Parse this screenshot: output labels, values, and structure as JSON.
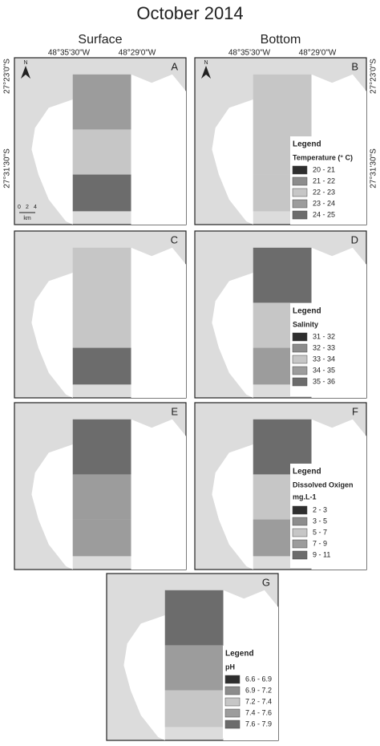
{
  "title": "October 2014",
  "columns": [
    "Surface",
    "Bottom"
  ],
  "longitudes": [
    "48°35'30\"W",
    "48°29'0\"W"
  ],
  "latitudes": [
    "27°23'0\"S",
    "27°31'30\"S"
  ],
  "north": "N",
  "scale": {
    "ticks": [
      "0",
      "2",
      "4"
    ],
    "unit": "km"
  },
  "panels": [
    {
      "label": "A"
    },
    {
      "label": "B"
    },
    {
      "label": "C"
    },
    {
      "label": "D"
    },
    {
      "label": "E"
    },
    {
      "label": "F"
    },
    {
      "label": "G"
    }
  ],
  "legends": [
    {
      "heading": "Legend",
      "title": "Temperature (° C)",
      "items": [
        {
          "label": "20 - 21",
          "color": "#2e2e2e"
        },
        {
          "label": "21 - 22",
          "color": "#8c8c8c"
        },
        {
          "label": "22 - 23",
          "color": "#c6c6c6"
        },
        {
          "label": "23 - 24",
          "color": "#9c9c9c"
        },
        {
          "label": "24 - 25",
          "color": "#6c6c6c"
        }
      ]
    },
    {
      "heading": "Legend",
      "title": "Salinity",
      "items": [
        {
          "label": "31 - 32",
          "color": "#2e2e2e"
        },
        {
          "label": "32 - 33",
          "color": "#8c8c8c"
        },
        {
          "label": "33 - 34",
          "color": "#c6c6c6"
        },
        {
          "label": "34 - 35",
          "color": "#9c9c9c"
        },
        {
          "label": "35 - 36",
          "color": "#6c6c6c"
        }
      ]
    },
    {
      "heading": "Legend",
      "title": "Dissolved Oxigen",
      "units": "mg.L-1",
      "items": [
        {
          "label": "2 - 3",
          "color": "#2e2e2e"
        },
        {
          "label": "3 - 5",
          "color": "#8c8c8c"
        },
        {
          "label": "5 - 7",
          "color": "#c6c6c6"
        },
        {
          "label": "7 - 9",
          "color": "#9c9c9c"
        },
        {
          "label": "9 - 11",
          "color": "#6c6c6c"
        }
      ]
    },
    {
      "heading": "Legend",
      "title": "pH",
      "items": [
        {
          "label": "6.6 - 6.9",
          "color": "#2e2e2e"
        },
        {
          "label": "6.9 - 7.2",
          "color": "#8c8c8c"
        },
        {
          "label": "7.2 - 7.4",
          "color": "#c6c6c6"
        },
        {
          "label": "7.4 - 7.6",
          "color": "#9c9c9c"
        },
        {
          "label": "7.6 - 7.9",
          "color": "#6c6c6c"
        }
      ]
    }
  ]
}
